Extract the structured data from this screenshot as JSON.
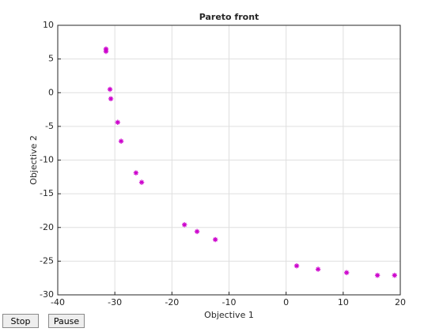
{
  "chart_data": {
    "type": "scatter",
    "title": "Pareto front",
    "x_label": "Objective 1",
    "y_label": "Objective 2",
    "x": [
      -31.55,
      -31.55,
      -30.85,
      -30.7,
      -29.5,
      -28.9,
      -26.3,
      -25.3,
      -17.8,
      -15.6,
      -12.4,
      1.85,
      5.6,
      10.6,
      16.0,
      19.0
    ],
    "values": [
      6.48,
      6.13,
      0.5,
      -0.9,
      -4.4,
      -7.2,
      -11.9,
      -13.3,
      -19.6,
      -20.6,
      -21.8,
      -25.7,
      -26.2,
      -26.7,
      -27.1,
      -27.1
    ],
    "color": "#cc00cc",
    "marker": "*",
    "xlim": [
      -40,
      20
    ],
    "xticks": [
      -40,
      -30,
      -20,
      -10,
      0,
      10,
      20
    ],
    "ylim": [
      -30,
      10
    ],
    "yticks": [
      -30,
      -25,
      -20,
      -15,
      -10,
      -5,
      0,
      5,
      10
    ],
    "grid": true
  },
  "controls": [
    "Stop",
    "Pause"
  ]
}
